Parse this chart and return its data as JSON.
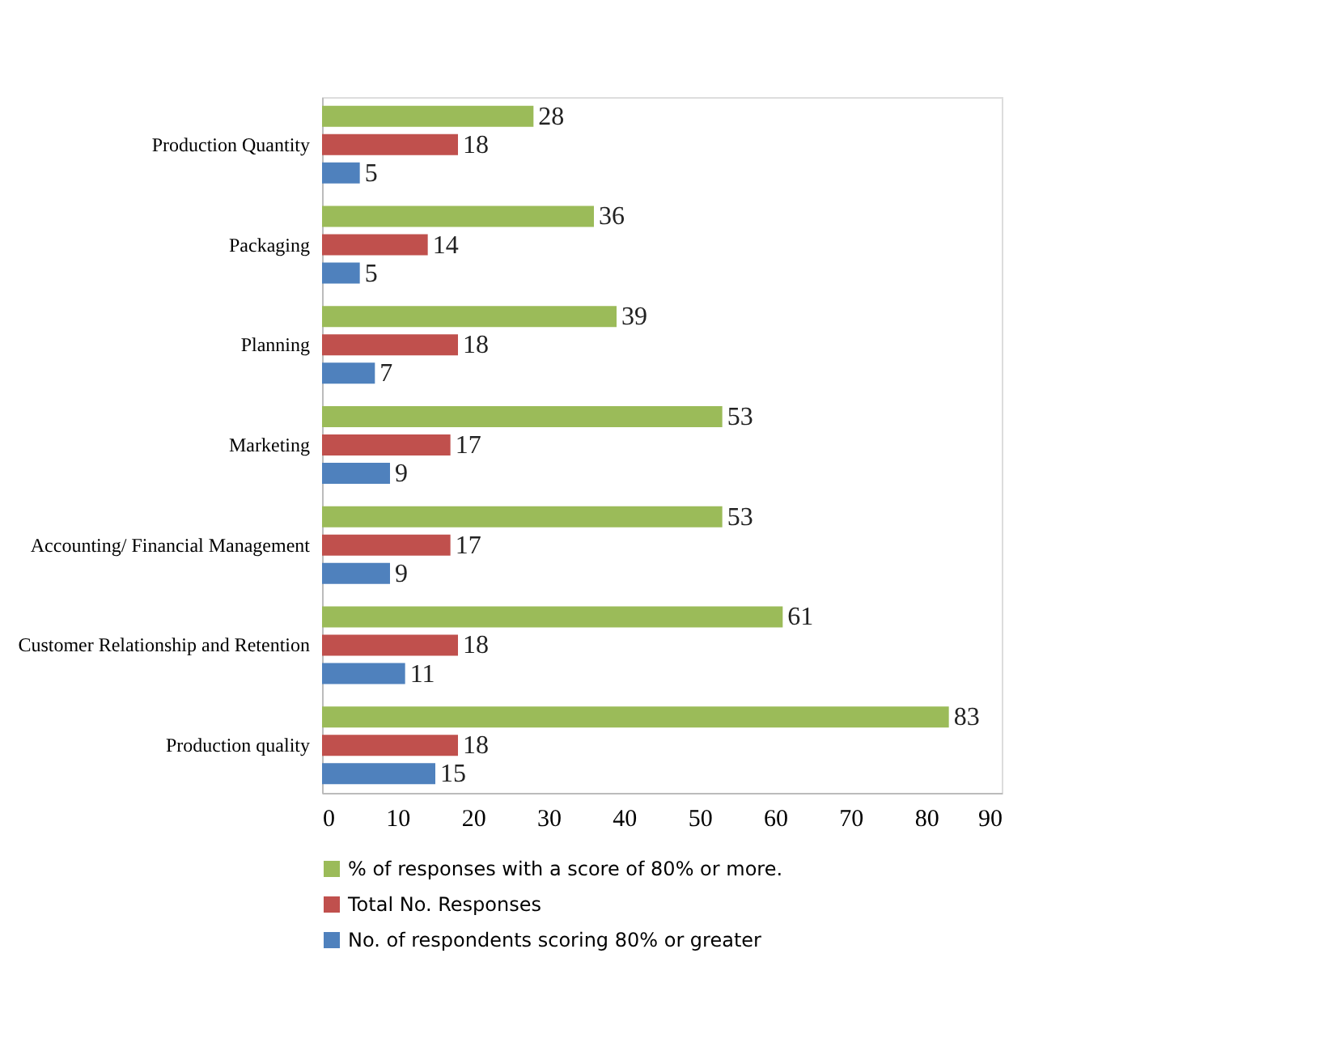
{
  "chart_data": {
    "type": "bar",
    "orientation": "horizontal",
    "categories": [
      "Production Quantity",
      "Packaging",
      "Planning",
      "Marketing",
      "Accounting/ Financial Management",
      "Customer Relationship and Retention",
      "Production quality"
    ],
    "series": [
      {
        "name": "% of responses with a score of 80% or more.",
        "color": "#9bbb59",
        "values": [
          28,
          36,
          39,
          53,
          53,
          61,
          83
        ]
      },
      {
        "name": "Total No. Responses",
        "color": "#c0504d",
        "values": [
          18,
          14,
          18,
          17,
          17,
          18,
          18
        ]
      },
      {
        "name": "No. of respondents scoring 80% or greater",
        "color": "#4f81bd",
        "values": [
          5,
          5,
          7,
          9,
          9,
          11,
          15
        ]
      }
    ],
    "xlim": [
      0,
      90
    ],
    "xticks": [
      0,
      10,
      20,
      30,
      40,
      50,
      60,
      70,
      80,
      90
    ],
    "data_labels": true,
    "grid": false,
    "legend": "bottom"
  }
}
